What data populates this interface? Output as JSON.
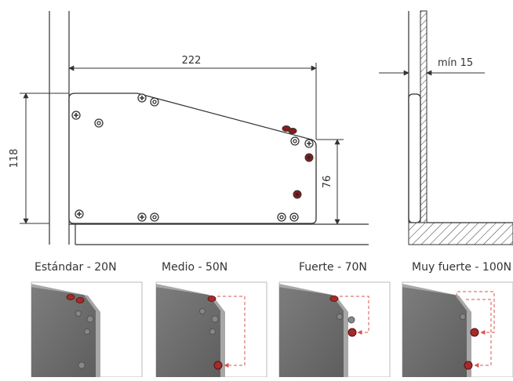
{
  "dimensions": {
    "width": "222",
    "height": "118",
    "step": "76",
    "min_wall": "mín 15"
  },
  "strength_levels": [
    {
      "label": "Estándar - 20N"
    },
    {
      "label": "Medio - 50N"
    },
    {
      "label": "Fuerte - 70N"
    },
    {
      "label": "Muy fuerte - 100N"
    }
  ],
  "colors": {
    "line": "#333333",
    "plate_fill": "#ffffff",
    "hole_fill": "#8b1a1a",
    "accent_dashed": "#d9534f",
    "photo_plate": "#6f6f6f",
    "photo_edge": "#a7a7a7",
    "photo_bg": "#ffffff"
  }
}
